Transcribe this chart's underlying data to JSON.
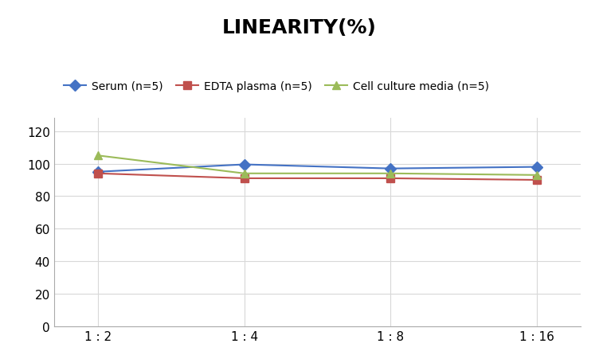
{
  "title": "LINEARITY(%)",
  "x_labels": [
    "1 : 2",
    "1 : 4",
    "1 : 8",
    "1 : 16"
  ],
  "x_positions": [
    0,
    1,
    2,
    3
  ],
  "series": [
    {
      "label": "Serum (n=5)",
      "values": [
        95,
        99.5,
        97,
        98
      ],
      "color": "#4472C4",
      "marker": "D",
      "linewidth": 1.5
    },
    {
      "label": "EDTA plasma (n=5)",
      "values": [
        94,
        91,
        91,
        90
      ],
      "color": "#C0504D",
      "marker": "s",
      "linewidth": 1.5
    },
    {
      "label": "Cell culture media (n=5)",
      "values": [
        105,
        94,
        94,
        93
      ],
      "color": "#9BBB59",
      "marker": "^",
      "linewidth": 1.5
    }
  ],
  "ylim": [
    0,
    128
  ],
  "yticks": [
    0,
    20,
    40,
    60,
    80,
    100,
    120
  ],
  "background_color": "#ffffff",
  "grid_color": "#d8d8d8",
  "title_fontsize": 18,
  "legend_fontsize": 10,
  "tick_fontsize": 11
}
